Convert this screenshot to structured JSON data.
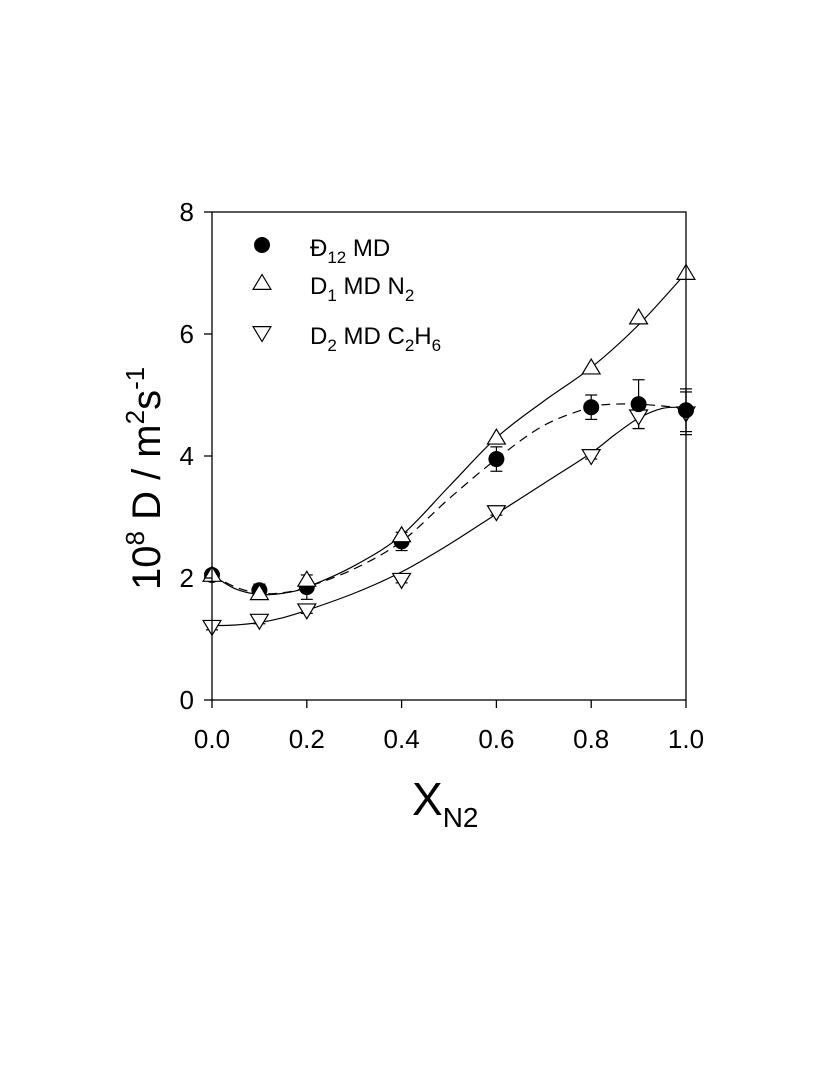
{
  "chart_data": {
    "type": "scatter",
    "xlabel": {
      "main": "X",
      "sub": "N2"
    },
    "ylabel": {
      "prefix": "10",
      "prefix_sup": "8",
      "body": " D / m",
      "sup1": "2",
      "mid": "s",
      "sup2": "-1"
    },
    "xlim": [
      0,
      1
    ],
    "ylim": [
      0,
      8
    ],
    "xticks": [
      "0.0",
      "0.2",
      "0.4",
      "0.6",
      "0.8",
      "1.0"
    ],
    "yticks": [
      "0",
      "2",
      "4",
      "6",
      "8"
    ],
    "grid": false,
    "legend_position": "top-left",
    "series": [
      {
        "name": "Đ12 MD",
        "label_parts": {
          "main": "Đ",
          "sub": "12",
          "rest": " MD",
          "sub2": "",
          "rest2": "",
          "sub3": ""
        },
        "marker": "circle-filled",
        "line": "dashed",
        "x": [
          0.0,
          0.1,
          0.2,
          0.4,
          0.6,
          0.8,
          0.9,
          1.0
        ],
        "y": [
          2.05,
          1.8,
          1.85,
          2.6,
          3.95,
          4.8,
          4.85,
          4.75
        ],
        "err": [
          0.08,
          0.1,
          0.2,
          0.15,
          0.2,
          0.2,
          0.4,
          0.35
        ],
        "curve_x": [
          0,
          0.05,
          0.1,
          0.15,
          0.2,
          0.3,
          0.4,
          0.5,
          0.6,
          0.7,
          0.8,
          0.85,
          0.9,
          0.95,
          1.0
        ],
        "curve_y": [
          2.05,
          1.85,
          1.75,
          1.76,
          1.85,
          2.15,
          2.6,
          3.3,
          3.95,
          4.5,
          4.8,
          4.85,
          4.85,
          4.82,
          4.78
        ]
      },
      {
        "name": "D1 MD N2",
        "label_parts": {
          "main": "D",
          "sub": "1",
          "rest": "  MD N",
          "sub2": "2",
          "rest2": "",
          "sub3": ""
        },
        "marker": "triangle-up-open",
        "line": "solid",
        "x": [
          0.0,
          0.1,
          0.2,
          0.4,
          0.6,
          0.8,
          0.9,
          1.0
        ],
        "y": [
          2.05,
          1.75,
          1.97,
          2.7,
          4.3,
          5.45,
          6.27,
          7.0
        ],
        "err": [],
        "curve_x": [
          0,
          0.05,
          0.1,
          0.15,
          0.2,
          0.3,
          0.4,
          0.5,
          0.6,
          0.7,
          0.8,
          0.9,
          1.0
        ],
        "curve_y": [
          2.05,
          1.82,
          1.73,
          1.75,
          1.85,
          2.2,
          2.7,
          3.5,
          4.3,
          4.9,
          5.45,
          6.15,
          7.0
        ]
      },
      {
        "name": "D2 MD C2H6",
        "label_parts": {
          "main": "D",
          "sub": "2",
          "rest": "  MD C",
          "sub2": "2",
          "rest2": "H",
          "sub3": "6"
        },
        "marker": "triangle-down-open",
        "line": "solid",
        "x": [
          0.0,
          0.1,
          0.2,
          0.4,
          0.6,
          0.8,
          0.9,
          1.0
        ],
        "y": [
          1.2,
          1.3,
          1.47,
          1.97,
          3.08,
          4.0,
          4.65,
          4.7
        ],
        "err": [
          0.05,
          0.05,
          0.05,
          0.05,
          0.05,
          0.05,
          0.2,
          0.35
        ],
        "curve_x": [
          0,
          0.05,
          0.1,
          0.15,
          0.2,
          0.3,
          0.4,
          0.5,
          0.6,
          0.7,
          0.8,
          0.85,
          0.9,
          0.95,
          1.0
        ],
        "curve_y": [
          1.22,
          1.23,
          1.27,
          1.35,
          1.47,
          1.75,
          2.1,
          2.55,
          3.05,
          3.55,
          4.05,
          4.35,
          4.62,
          4.78,
          4.8
        ]
      }
    ]
  }
}
